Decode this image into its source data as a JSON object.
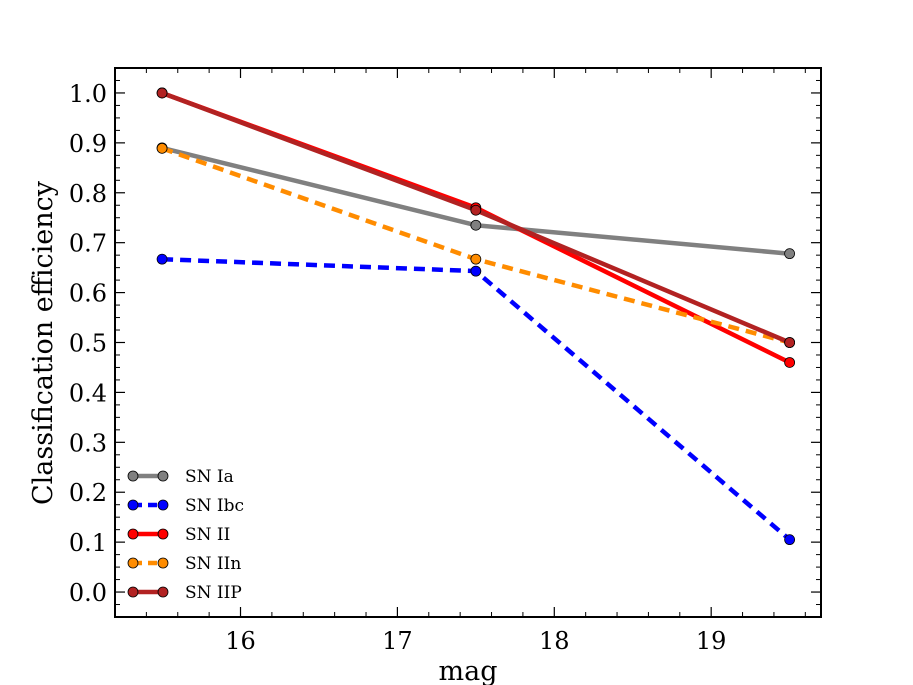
{
  "chart_data": {
    "type": "line",
    "title": "",
    "xlabel": "mag",
    "ylabel": "Classification efficiency",
    "xlim": [
      15.2,
      19.7
    ],
    "ylim": [
      -0.05,
      1.05
    ],
    "xticks": [
      16,
      17,
      18,
      19
    ],
    "xtick_labels": [
      "16",
      "17",
      "18",
      "19"
    ],
    "yticks": [
      0.0,
      0.1,
      0.2,
      0.3,
      0.4,
      0.5,
      0.6,
      0.7,
      0.8,
      0.9,
      1.0
    ],
    "ytick_labels": [
      "0.0",
      "0.1",
      "0.2",
      "0.3",
      "0.4",
      "0.5",
      "0.6",
      "0.7",
      "0.8",
      "0.9",
      "1.0"
    ],
    "x": [
      15.5,
      17.5,
      19.5
    ],
    "grid": false,
    "legend_position": "bottom-left",
    "series": [
      {
        "key": "sn-ia",
        "name": "SN Ia",
        "values": [
          0.89,
          0.735,
          0.678
        ],
        "color": "#808080",
        "dashed": false
      },
      {
        "key": "sn-ibc",
        "name": "SN Ibc",
        "values": [
          0.667,
          0.643,
          0.105
        ],
        "color": "#0000ff",
        "dashed": true
      },
      {
        "key": "sn-ii",
        "name": "SN II",
        "values": [
          1.0,
          0.77,
          0.46
        ],
        "color": "#ff0000",
        "dashed": false
      },
      {
        "key": "sn-iin",
        "name": "SN IIn",
        "values": [
          0.889,
          0.667,
          0.5
        ],
        "color": "#ff8c00",
        "dashed": true
      },
      {
        "key": "sn-iip",
        "name": "SN IIP",
        "values": [
          1.0,
          0.765,
          0.5
        ],
        "color": "#b22222",
        "dashed": false
      }
    ]
  }
}
